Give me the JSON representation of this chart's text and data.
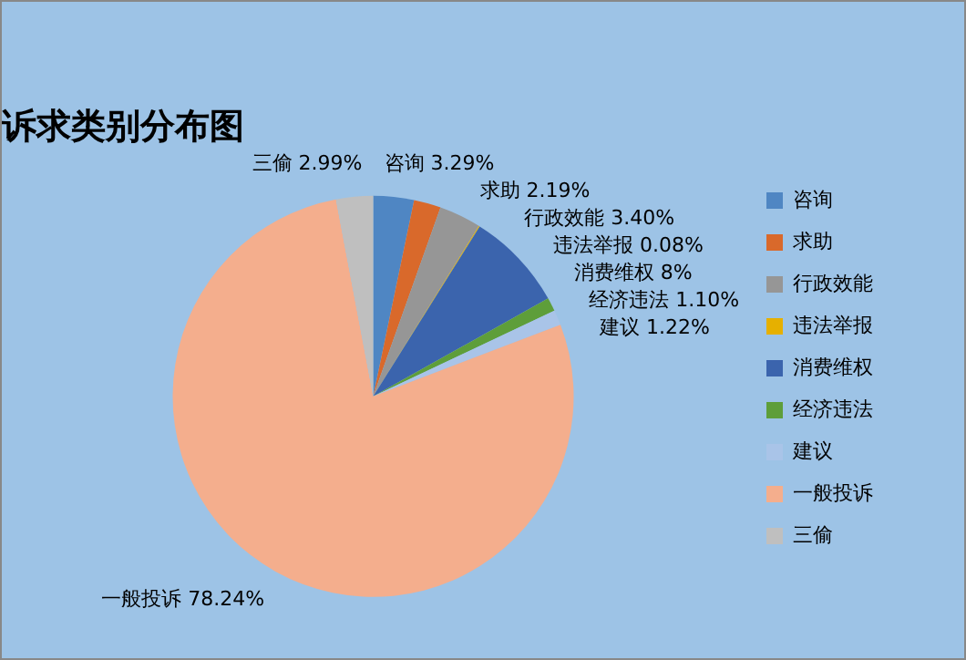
{
  "chart_data": {
    "type": "pie",
    "title": "诉求类别分布图",
    "categories": [
      "咨询",
      "求助",
      "行政效能",
      "违法举报",
      "消费维权",
      "经济违法",
      "建议",
      "一般投诉",
      "三偷"
    ],
    "values": [
      3.29,
      2.19,
      3.4,
      0.08,
      8,
      1.1,
      1.22,
      78.24,
      2.99
    ],
    "value_labels": [
      "3.29%",
      "2.19%",
      "3.40%",
      "0.08%",
      "8%",
      "1.10%",
      "1.22%",
      "78.24%",
      "2.99%"
    ],
    "colors": [
      "#4f86c3",
      "#d9692b",
      "#969696",
      "#e6b000",
      "#3b64ad",
      "#5e9e3a",
      "#a9c4e8",
      "#f4ae8d",
      "#bfbfbf"
    ],
    "legend": "right"
  }
}
